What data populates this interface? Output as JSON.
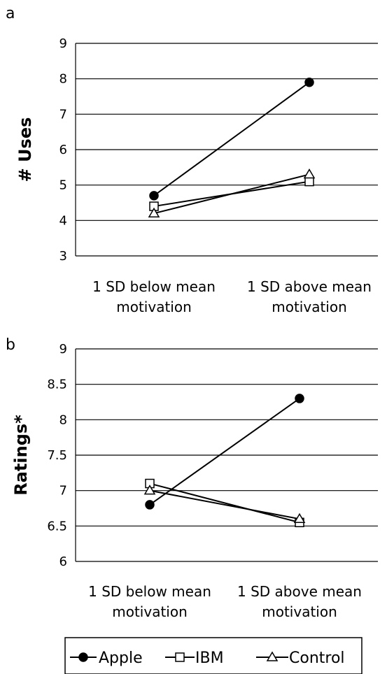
{
  "chart_data": [
    {
      "type": "line",
      "panel_label": "a",
      "title": "",
      "xlabel": "",
      "ylabel": "# Uses",
      "categories": [
        "1 SD below mean motivation",
        "1 SD above mean motivation"
      ],
      "category_lines": [
        [
          "1 SD below mean",
          "motivation"
        ],
        [
          "1 SD above mean",
          "motivation"
        ]
      ],
      "ylim": [
        3,
        9
      ],
      "yticks": [
        3,
        4,
        5,
        6,
        7,
        8,
        9
      ],
      "ytick_labels": [
        "3",
        "4",
        "5",
        "6",
        "7",
        "8",
        "9"
      ],
      "grid": true,
      "series": [
        {
          "name": "Apple",
          "marker": "circle-filled",
          "values": [
            4.7,
            7.9
          ]
        },
        {
          "name": "IBM",
          "marker": "square-open",
          "values": [
            4.4,
            5.1
          ]
        },
        {
          "name": "Control",
          "marker": "triangle-open",
          "values": [
            4.2,
            5.3
          ]
        }
      ]
    },
    {
      "type": "line",
      "panel_label": "b",
      "title": "",
      "xlabel": "",
      "ylabel": "Ratings*",
      "categories": [
        "1 SD below mean motivation",
        "1 SD above mean motivation"
      ],
      "category_lines": [
        [
          "1 SD below mean",
          "motivation"
        ],
        [
          "1 SD above mean",
          "motivation"
        ]
      ],
      "ylim": [
        6,
        9
      ],
      "yticks": [
        6,
        6.5,
        7,
        7.5,
        8,
        8.5,
        9
      ],
      "ytick_labels": [
        "6",
        "6.5",
        "7",
        "7.5",
        "8",
        "8.5",
        "9"
      ],
      "grid": true,
      "series": [
        {
          "name": "Apple",
          "marker": "circle-filled",
          "values": [
            6.8,
            8.3
          ]
        },
        {
          "name": "IBM",
          "marker": "square-open",
          "values": [
            7.1,
            6.55
          ]
        },
        {
          "name": "Control",
          "marker": "triangle-open",
          "values": [
            7.0,
            6.6
          ]
        }
      ]
    }
  ],
  "legend": {
    "placement": "bottom",
    "items": [
      {
        "label": "Apple",
        "marker": "circle-filled"
      },
      {
        "label": "IBM",
        "marker": "square-open"
      },
      {
        "label": "Control",
        "marker": "triangle-open"
      }
    ]
  },
  "colors": {
    "line": "#000000",
    "grid": "#000000",
    "background": "#ffffff"
  }
}
